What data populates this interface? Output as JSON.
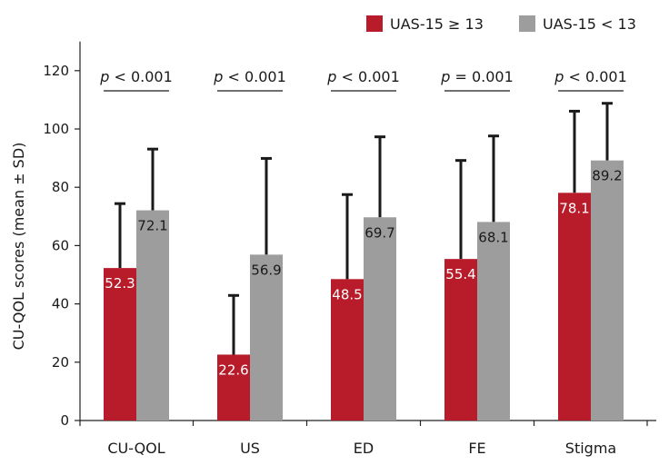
{
  "chart_data": {
    "type": "bar",
    "categories": [
      "CU-QOL",
      "US",
      "ED",
      "FE",
      "Stigma"
    ],
    "series": [
      {
        "name": "UAS-15 ≥ 13",
        "color": "#b81c2a",
        "values": [
          52.3,
          22.6,
          48.5,
          55.4,
          78.1
        ],
        "sd": [
          22.1,
          20.3,
          29.0,
          33.8,
          28.0
        ],
        "labels": [
          "52.3",
          "22.6",
          "48.5",
          "55.4",
          "78.1"
        ]
      },
      {
        "name": "UAS-15 < 13",
        "color": "#9d9d9d",
        "values": [
          72.1,
          56.9,
          69.7,
          68.1,
          89.2
        ],
        "sd": [
          21.0,
          33.0,
          27.6,
          29.5,
          19.6
        ],
        "labels": [
          "72.1",
          "56.9",
          "69.7",
          "68.1",
          "89.2"
        ]
      }
    ],
    "pvalues": [
      "< 0.001",
      "< 0.001",
      "< 0.001",
      "= 0.001",
      "< 0.001"
    ],
    "p_symbol": "p",
    "ylabel": "CU-QOL scores (mean ± SD)",
    "ylim": [
      0,
      130
    ],
    "yticks": [
      "0",
      "20",
      "40",
      "60",
      "80",
      "100",
      "120"
    ],
    "legend_position": "top-right",
    "grid": false
  }
}
